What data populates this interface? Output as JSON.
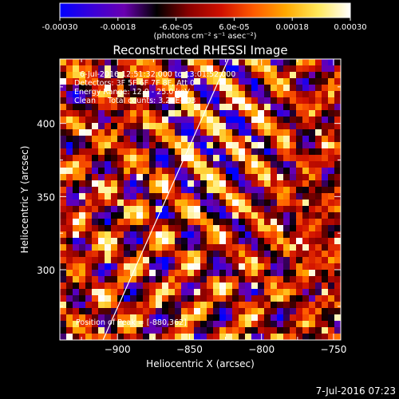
{
  "colorbar": {
    "ticks": [
      "-0.00030",
      "-0.00018",
      "-6.0e-05",
      "6.0e-05",
      "0.00018",
      "0.00030"
    ],
    "units": "(photons cm⁻² s⁻¹ asec⁻²)",
    "range": [
      -0.0003,
      0.0003
    ],
    "colormap": [
      "#0000ff",
      "#3a00d8",
      "#6a00b0",
      "#000000",
      "#8a0000",
      "#d01000",
      "#ff5a00",
      "#ffa800",
      "#ffe85a",
      "#ffffff"
    ]
  },
  "chart_data": {
    "type": "heatmap",
    "title": "Reconstructed RHESSI Image",
    "xlabel": "Heliocentric X (arcsec)",
    "ylabel": "Heliocentric Y (arcsec)",
    "xlim": [
      -940,
      -745
    ],
    "ylim": [
      252,
      444
    ],
    "xticks": [
      -900,
      -850,
      -800,
      -750
    ],
    "yticks": [
      300,
      350,
      400
    ],
    "grid": false,
    "description_lines": [
      "6-Jul-2016 12:51:32.000 to 13:01:52.000",
      "Detectors: 3F 5F 6F 7F 8F, Att 0",
      "Energy Range: 12.0 - 25.0 keV",
      "Clean     Total counts: 3.23E+03"
    ],
    "annotation": "Position of Peak = [-880,362]",
    "peak": [
      -880,
      362
    ],
    "limb_line": [
      [
        -910,
        252
      ],
      [
        -823,
        444
      ]
    ]
  },
  "footer": {
    "timestamp": "7-Jul-2016 07:23"
  }
}
